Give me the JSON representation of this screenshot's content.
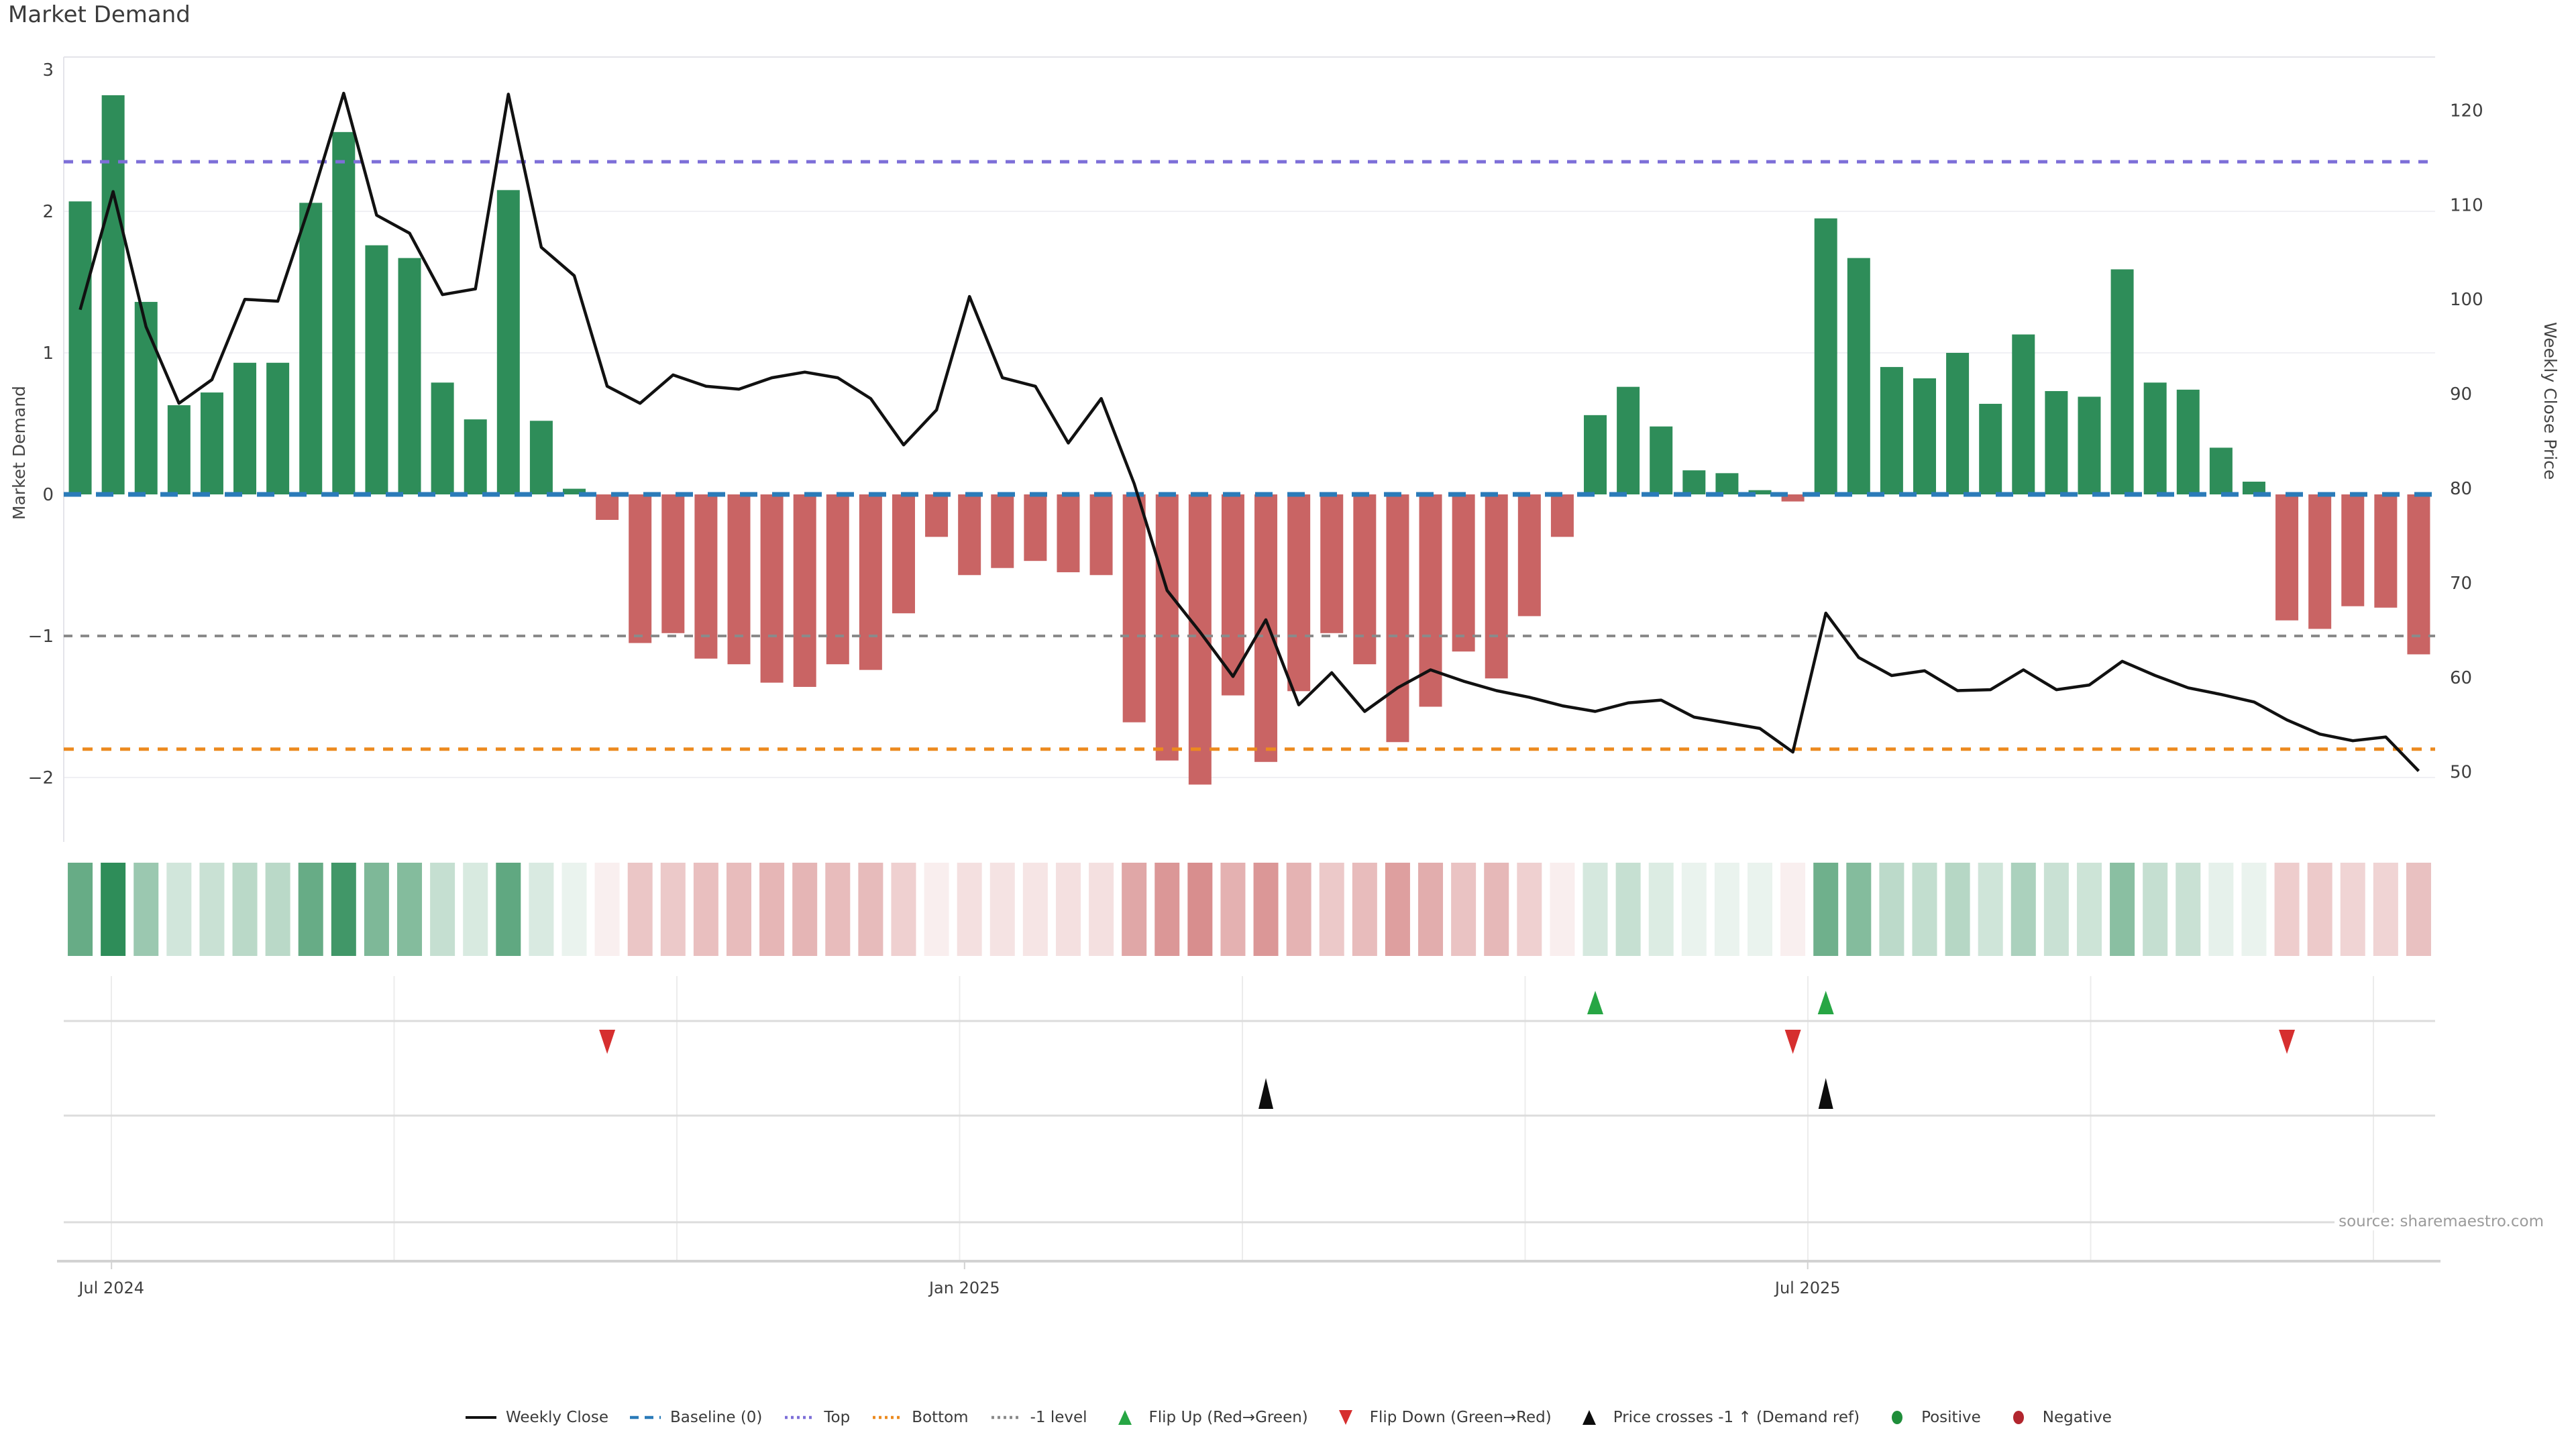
{
  "title": "Market Demand",
  "source_note": "source: sharemaestro.com",
  "colors": {
    "positive_bar": "#2e8d59",
    "negative_bar": "#c96464",
    "price_line": "#111111",
    "baseline": "#2b7bb9",
    "top_line": "#7d6fd8",
    "bottom_line": "#ec8a1f",
    "minus1_line": "#8a8a8a",
    "flip_up_marker": "#27a644",
    "flip_down_marker": "#d62f2f",
    "price_cross_marker": "#0d0d0d",
    "positive_legend_dot": "#1f8e3a",
    "negative_legend_dot": "#b2262e",
    "grid": "#f0f0f4",
    "spine": "#e4e4ea",
    "row_line": "#dcdcdc",
    "axis_line": "#d2d2d2",
    "vgrid": "#ececec",
    "tick_text": "#3f3f3f"
  },
  "axes": {
    "left_label": "Market Demand",
    "right_label": "Weekly Close Price"
  },
  "chart_data": {
    "type": "combo",
    "x_unit": "week index (weekly bars, Jul 2024 - Nov 2025)",
    "x_ticks": [
      {
        "label": "Jul 2024",
        "week": 0.95
      },
      {
        "label": "Jan 2025",
        "week": 26.85
      },
      {
        "label": "Jul 2025",
        "week": 52.45
      }
    ],
    "left_axis": {
      "label": "Market Demand",
      "range": [
        -2.45,
        3.09
      ],
      "ticks": [
        {
          "value": 3,
          "label": "3"
        },
        {
          "value": 2,
          "label": "2"
        },
        {
          "value": 1,
          "label": "1"
        },
        {
          "value": 0,
          "label": "0"
        },
        {
          "value": -1,
          "label": "−1"
        },
        {
          "value": -2,
          "label": "−2"
        }
      ]
    },
    "right_axis": {
      "label": "Weekly Close Price",
      "range": [
        45,
        125
      ],
      "ticks": [
        {
          "value": 120,
          "label": "120"
        },
        {
          "value": 110,
          "label": "110"
        },
        {
          "value": 100,
          "label": "100"
        },
        {
          "value": 90,
          "label": "90"
        },
        {
          "value": 80,
          "label": "80"
        },
        {
          "value": 70,
          "label": "70"
        },
        {
          "value": 60,
          "label": "60"
        },
        {
          "value": 50,
          "label": "50"
        }
      ]
    },
    "ref_lines": {
      "baseline": 0,
      "top": 2.35,
      "bottom": -1.8,
      "minus1_level": -1
    },
    "series": [
      {
        "name": "Market Demand",
        "type": "bar",
        "axis": "left",
        "values": [
          2.07,
          2.82,
          1.36,
          0.63,
          0.72,
          0.93,
          0.93,
          2.06,
          2.56,
          1.76,
          1.67,
          0.79,
          0.53,
          2.15,
          0.52,
          0.04,
          -0.18,
          -1.05,
          -0.98,
          -1.16,
          -1.2,
          -1.33,
          -1.36,
          -1.2,
          -1.24,
          -0.84,
          -0.3,
          -0.57,
          -0.52,
          -0.47,
          -0.55,
          -0.57,
          -1.61,
          -1.88,
          -2.05,
          -1.42,
          -1.89,
          -1.39,
          -0.98,
          -1.2,
          -1.75,
          -1.5,
          -1.11,
          -1.3,
          -0.86,
          -0.3,
          0.56,
          0.76,
          0.48,
          0.17,
          0.15,
          0.03,
          -0.05,
          1.95,
          1.67,
          0.9,
          0.82,
          1.0,
          0.64,
          1.13,
          0.73,
          0.69,
          1.59,
          0.79,
          0.74,
          0.33,
          0.09,
          -0.89,
          -0.95,
          -0.79,
          -0.8,
          -1.13
        ]
      },
      {
        "name": "Weekly Close",
        "type": "line",
        "axis": "right",
        "values": [
          98.9,
          111.4,
          97.1,
          89.0,
          91.5,
          100.0,
          99.8,
          110.3,
          121.8,
          108.9,
          107.0,
          100.5,
          101.1,
          121.7,
          105.5,
          102.5,
          90.8,
          89.0,
          92.0,
          90.8,
          90.5,
          91.7,
          92.3,
          91.7,
          89.5,
          84.6,
          88.3,
          100.3,
          91.7,
          90.8,
          84.8,
          89.5,
          80.5,
          69.2,
          64.8,
          60.1,
          66.1,
          57.1,
          60.5,
          56.4,
          58.9,
          60.8,
          59.6,
          58.6,
          57.9,
          57.0,
          56.4,
          57.3,
          57.6,
          55.8,
          55.2,
          54.6,
          52.1,
          66.8,
          62.1,
          60.2,
          60.7,
          58.6,
          58.7,
          60.8,
          58.7,
          59.2,
          61.7,
          60.2,
          58.9,
          58.2,
          57.4,
          55.5,
          54.0,
          53.3,
          53.7,
          50.1
        ]
      }
    ],
    "heatmap": {
      "note": "strip below main chart; cell color = bar sign, intensity proportional to |bar value|"
    },
    "markers": {
      "flip_up_weeks": [
        46,
        53
      ],
      "flip_down_weeks": [
        16,
        52,
        67
      ],
      "price_cross_minus1_weeks": [
        36,
        53
      ]
    }
  },
  "legend": {
    "items": [
      {
        "label": "Weekly Close",
        "marker": "line",
        "color": "#111111"
      },
      {
        "label": "Baseline (0)",
        "marker": "dash",
        "color": "#2b7bb9"
      },
      {
        "label": "Top",
        "marker": "dot",
        "color": "#7d6fd8"
      },
      {
        "label": "Bottom",
        "marker": "dot",
        "color": "#ec8a1f"
      },
      {
        "label": "-1 level",
        "marker": "dot",
        "color": "#8a8a8a"
      },
      {
        "label": "Flip Up (Red→Green)",
        "marker": "triangle-up",
        "color": "#27a644"
      },
      {
        "label": "Flip Down (Green→Red)",
        "marker": "triangle-down",
        "color": "#d62f2f"
      },
      {
        "label": "Price crosses -1 ↑ (Demand ref)",
        "marker": "triangle-up",
        "color": "#0d0d0d"
      },
      {
        "label": "Positive",
        "marker": "circle",
        "color": "#1f8e3a"
      },
      {
        "label": "Negative",
        "marker": "circle",
        "color": "#b2262e"
      }
    ]
  }
}
